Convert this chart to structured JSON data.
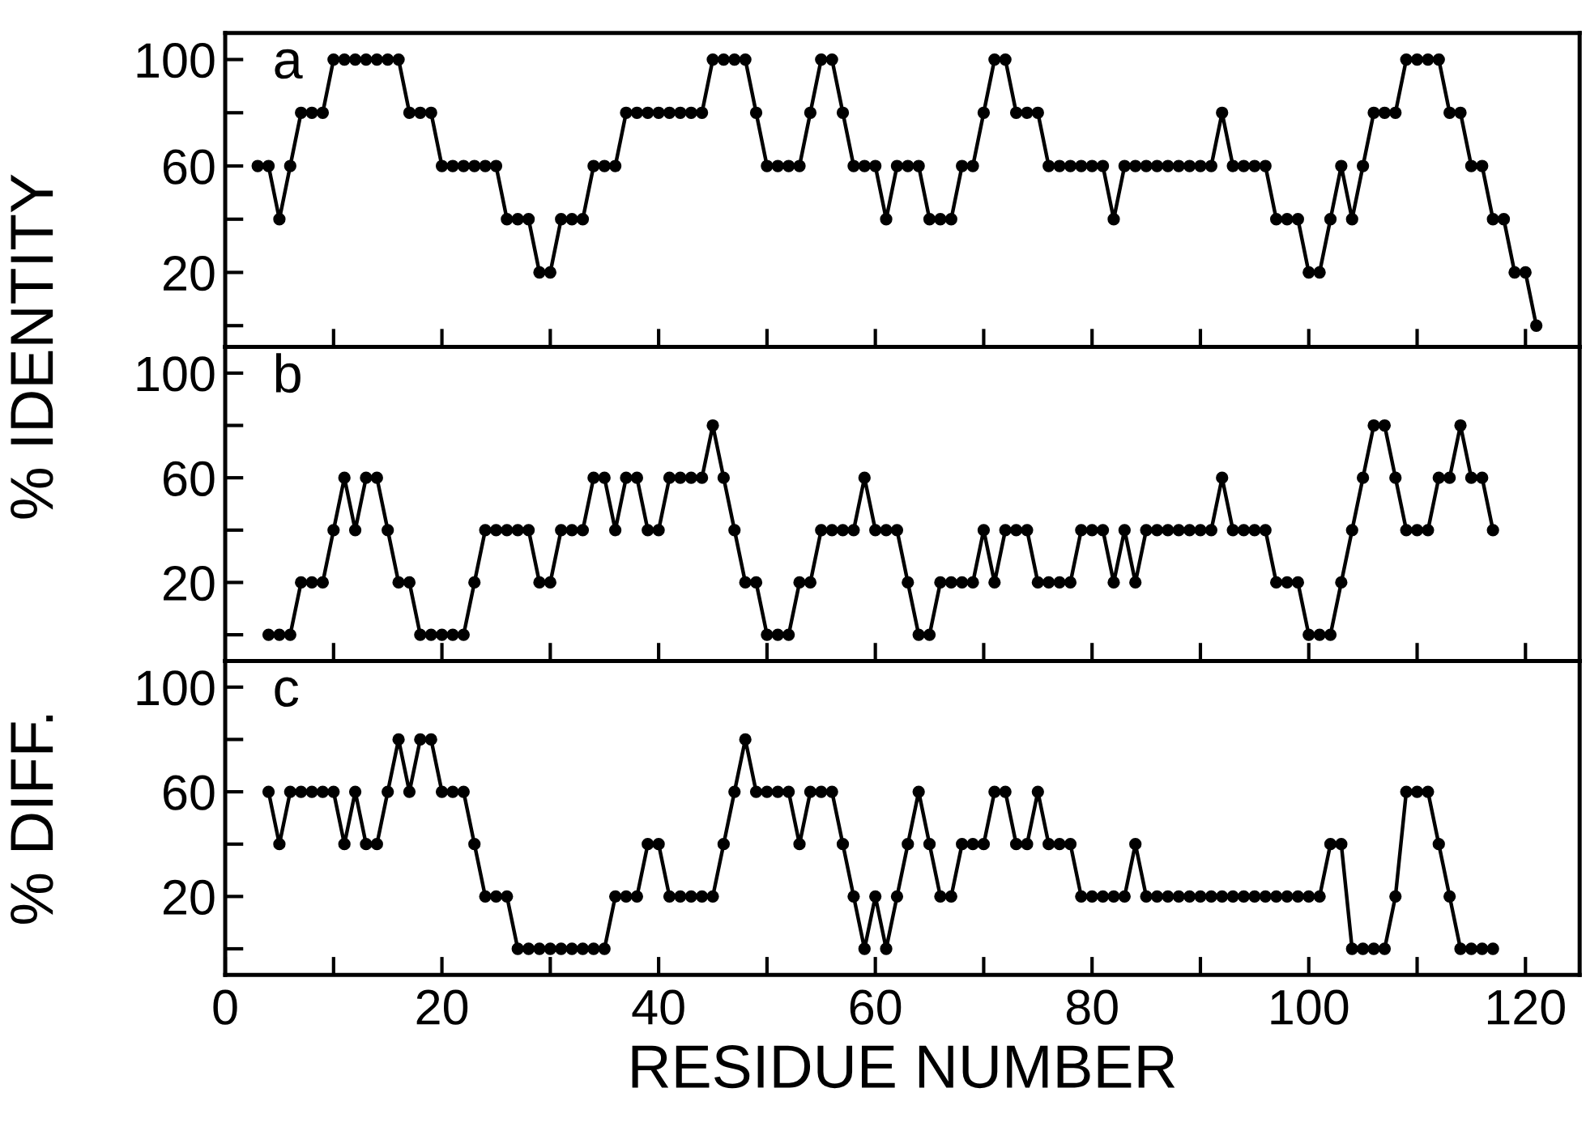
{
  "chart_data": [
    {
      "type": "line",
      "ylabel": "% IDENTITY",
      "annotations": [
        "a"
      ],
      "color": "#000000",
      "marker": "circle",
      "line_style": "solid",
      "grid": false,
      "tick_labels": "y",
      "xlim": [
        0,
        125
      ],
      "ylim": [
        -8,
        110
      ],
      "xticks": [
        {
          "value": 10,
          "label": null
        },
        {
          "value": 20,
          "label": null
        },
        {
          "value": 30,
          "label": null
        },
        {
          "value": 40,
          "label": null
        },
        {
          "value": 50,
          "label": null
        },
        {
          "value": 60,
          "label": null
        },
        {
          "value": 70,
          "label": null
        },
        {
          "value": 80,
          "label": null
        },
        {
          "value": 90,
          "label": null
        },
        {
          "value": 100,
          "label": null
        },
        {
          "value": 110,
          "label": null
        },
        {
          "value": 120,
          "label": null
        }
      ],
      "yticks": [
        {
          "value": 0,
          "label": null
        },
        20,
        {
          "value": 40,
          "label": null
        },
        60,
        {
          "value": 80,
          "label": null
        },
        100
      ],
      "x": [
        3,
        4,
        5,
        6,
        7,
        8,
        9,
        10,
        11,
        12,
        13,
        14,
        15,
        16,
        17,
        18,
        19,
        20,
        21,
        22,
        23,
        24,
        25,
        26,
        27,
        28,
        29,
        30,
        31,
        32,
        33,
        34,
        35,
        36,
        37,
        38,
        39,
        40,
        41,
        42,
        43,
        44,
        45,
        46,
        47,
        48,
        49,
        50,
        51,
        52,
        53,
        54,
        55,
        56,
        57,
        58,
        59,
        60,
        61,
        62,
        63,
        64,
        65,
        66,
        67,
        68,
        69,
        70,
        71,
        72,
        73,
        74,
        75,
        76,
        77,
        78,
        79,
        80,
        81,
        82,
        83,
        84,
        85,
        86,
        87,
        88,
        89,
        90,
        91,
        92,
        93,
        94,
        95,
        96,
        97,
        98,
        99,
        100,
        101,
        102,
        103,
        104,
        105,
        106,
        107,
        108,
        109,
        110,
        111,
        112,
        113,
        114,
        115,
        116,
        117,
        118,
        119,
        120,
        121
      ],
      "values": [
        60,
        60,
        40,
        60,
        80,
        80,
        80,
        100,
        100,
        100,
        100,
        100,
        100,
        100,
        80,
        80,
        80,
        60,
        60,
        60,
        60,
        60,
        60,
        40,
        40,
        40,
        20,
        20,
        40,
        40,
        40,
        60,
        60,
        60,
        80,
        80,
        80,
        80,
        80,
        80,
        80,
        80,
        100,
        100,
        100,
        100,
        80,
        60,
        60,
        60,
        60,
        80,
        100,
        100,
        80,
        60,
        60,
        60,
        40,
        60,
        60,
        60,
        40,
        40,
        40,
        60,
        60,
        80,
        100,
        100,
        80,
        80,
        80,
        60,
        60,
        60,
        60,
        60,
        60,
        40,
        60,
        60,
        60,
        60,
        60,
        60,
        60,
        60,
        60,
        80,
        60,
        60,
        60,
        60,
        40,
        40,
        40,
        20,
        20,
        40,
        60,
        40,
        60,
        80,
        80,
        80,
        100,
        100,
        100,
        100,
        80,
        80,
        60,
        60,
        40,
        40,
        20,
        20,
        0
      ]
    },
    {
      "type": "line",
      "annotations": [
        "b"
      ],
      "color": "#000000",
      "marker": "circle",
      "line_style": "solid",
      "grid": false,
      "tick_labels": "y",
      "xlim": [
        0,
        125
      ],
      "ylim": [
        -10,
        110
      ],
      "xticks": [
        {
          "value": 10,
          "label": null
        },
        {
          "value": 20,
          "label": null
        },
        {
          "value": 30,
          "label": null
        },
        {
          "value": 40,
          "label": null
        },
        {
          "value": 50,
          "label": null
        },
        {
          "value": 60,
          "label": null
        },
        {
          "value": 70,
          "label": null
        },
        {
          "value": 80,
          "label": null
        },
        {
          "value": 90,
          "label": null
        },
        {
          "value": 100,
          "label": null
        },
        {
          "value": 110,
          "label": null
        },
        {
          "value": 120,
          "label": null
        }
      ],
      "yticks": [
        {
          "value": 0,
          "label": null
        },
        20,
        {
          "value": 40,
          "label": null
        },
        60,
        {
          "value": 80,
          "label": null
        },
        100
      ],
      "x": [
        4,
        5,
        6,
        7,
        8,
        9,
        10,
        11,
        12,
        13,
        14,
        15,
        16,
        17,
        18,
        19,
        20,
        21,
        22,
        23,
        24,
        25,
        26,
        27,
        28,
        29,
        30,
        31,
        32,
        33,
        34,
        35,
        36,
        37,
        38,
        39,
        40,
        41,
        42,
        43,
        44,
        45,
        46,
        47,
        48,
        49,
        50,
        51,
        52,
        53,
        54,
        55,
        56,
        57,
        58,
        59,
        60,
        61,
        62,
        63,
        64,
        65,
        66,
        67,
        68,
        69,
        70,
        71,
        72,
        73,
        74,
        75,
        76,
        77,
        78,
        79,
        80,
        81,
        82,
        83,
        84,
        85,
        86,
        87,
        88,
        89,
        90,
        91,
        92,
        93,
        94,
        95,
        96,
        97,
        98,
        99,
        100,
        101,
        102,
        103,
        104,
        105,
        106,
        107,
        108,
        109,
        110,
        111,
        112,
        113,
        114,
        115,
        116,
        117
      ],
      "values": [
        0,
        0,
        0,
        20,
        20,
        20,
        40,
        60,
        40,
        60,
        60,
        40,
        20,
        20,
        0,
        0,
        0,
        0,
        0,
        20,
        40,
        40,
        40,
        40,
        40,
        20,
        20,
        40,
        40,
        40,
        60,
        60,
        40,
        60,
        60,
        40,
        40,
        60,
        60,
        60,
        60,
        80,
        60,
        40,
        20,
        20,
        0,
        0,
        0,
        20,
        20,
        40,
        40,
        40,
        40,
        60,
        40,
        40,
        40,
        20,
        0,
        0,
        20,
        20,
        20,
        20,
        40,
        20,
        40,
        40,
        40,
        20,
        20,
        20,
        20,
        40,
        40,
        40,
        20,
        40,
        20,
        40,
        40,
        40,
        40,
        40,
        40,
        40,
        60,
        40,
        40,
        40,
        40,
        20,
        20,
        20,
        0,
        0,
        0,
        20,
        40,
        60,
        80,
        80,
        60,
        40,
        40,
        40,
        60,
        60,
        80,
        60,
        60,
        40
      ]
    },
    {
      "type": "line",
      "ylabel": "% DIFF.",
      "xlabel": "RESIDUE NUMBER",
      "annotations": [
        "c"
      ],
      "color": "#000000",
      "marker": "circle",
      "line_style": "solid",
      "grid": false,
      "xlim": [
        0,
        125
      ],
      "ylim": [
        -10,
        110
      ],
      "xticks": [
        0,
        {
          "value": 10,
          "label": null
        },
        20,
        {
          "value": 30,
          "label": null
        },
        40,
        {
          "value": 50,
          "label": null
        },
        60,
        {
          "value": 70,
          "label": null
        },
        80,
        {
          "value": 90,
          "label": null
        },
        100,
        {
          "value": 110,
          "label": null
        },
        120
      ],
      "yticks": [
        {
          "value": 0,
          "label": null
        },
        20,
        {
          "value": 40,
          "label": null
        },
        60,
        {
          "value": 80,
          "label": null
        },
        100
      ],
      "x": [
        4,
        5,
        6,
        7,
        8,
        9,
        10,
        11,
        12,
        13,
        14,
        15,
        16,
        17,
        18,
        19,
        20,
        21,
        22,
        23,
        24,
        25,
        26,
        27,
        28,
        29,
        30,
        31,
        32,
        33,
        34,
        35,
        36,
        37,
        38,
        39,
        40,
        41,
        42,
        43,
        44,
        45,
        46,
        47,
        48,
        49,
        50,
        51,
        52,
        53,
        54,
        55,
        56,
        57,
        58,
        59,
        60,
        61,
        62,
        63,
        64,
        65,
        66,
        67,
        68,
        69,
        70,
        71,
        72,
        73,
        74,
        75,
        76,
        77,
        78,
        79,
        80,
        81,
        82,
        83,
        84,
        85,
        86,
        87,
        88,
        89,
        90,
        91,
        92,
        93,
        94,
        95,
        96,
        97,
        98,
        99,
        100,
        101,
        102,
        103,
        104,
        105,
        106,
        107,
        108,
        109,
        110,
        111,
        112,
        113,
        114,
        115,
        116,
        117
      ],
      "values": [
        60,
        40,
        60,
        60,
        60,
        60,
        60,
        40,
        60,
        40,
        40,
        60,
        80,
        60,
        80,
        80,
        60,
        60,
        60,
        40,
        20,
        20,
        20,
        0,
        0,
        0,
        0,
        0,
        0,
        0,
        0,
        0,
        20,
        20,
        20,
        40,
        40,
        20,
        20,
        20,
        20,
        20,
        40,
        60,
        80,
        60,
        60,
        60,
        60,
        40,
        60,
        60,
        60,
        40,
        20,
        0,
        20,
        0,
        20,
        40,
        60,
        40,
        20,
        20,
        40,
        40,
        40,
        60,
        60,
        40,
        40,
        60,
        40,
        40,
        40,
        20,
        20,
        20,
        20,
        20,
        40,
        20,
        20,
        20,
        20,
        20,
        20,
        20,
        20,
        20,
        20,
        20,
        20,
        20,
        20,
        20,
        20,
        20,
        40,
        40,
        0,
        0,
        0,
        0,
        20,
        60,
        60,
        60,
        40,
        20,
        0,
        0,
        0,
        0
      ]
    }
  ]
}
